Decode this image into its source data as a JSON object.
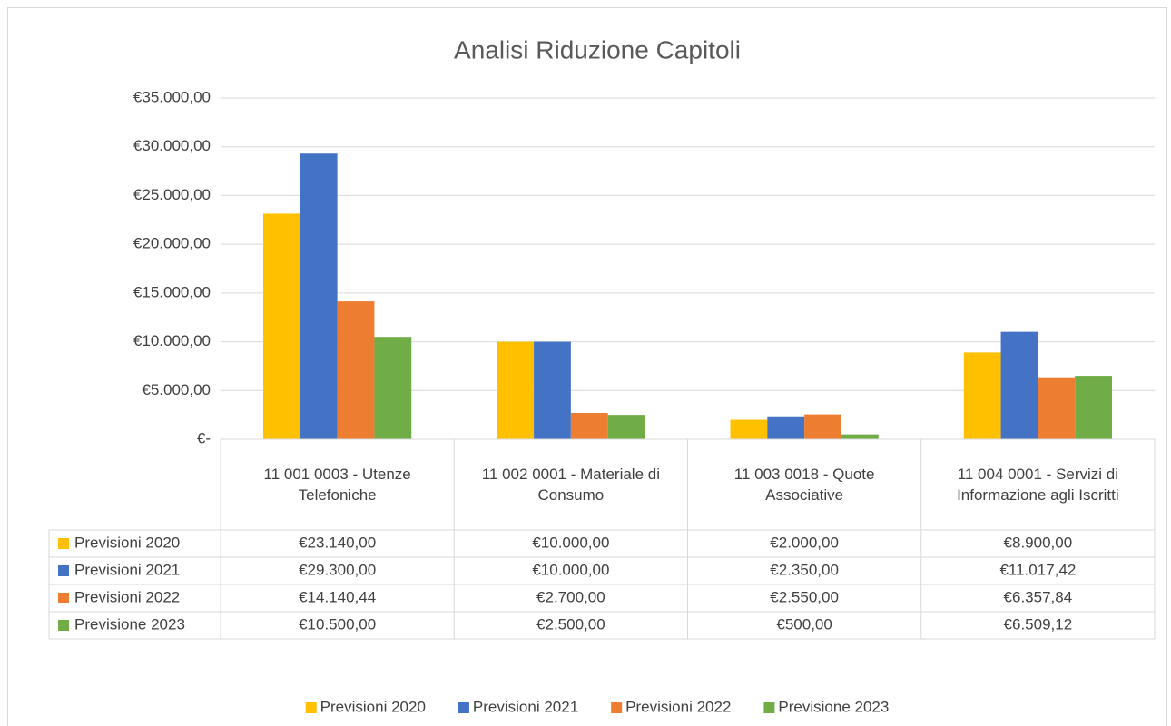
{
  "chart_data": {
    "type": "bar",
    "title": "Analisi Riduzione Capitoli",
    "categories": [
      "11 001 0003 - Utenze Telefoniche",
      "11 002 0001 - Materiale di Consumo",
      "11 003 0018 - Quote Associative",
      "11 004 0001 - Servizi di Informazione agli Iscritti"
    ],
    "series": [
      {
        "name": "Previsioni 2020",
        "color": "#ffc000",
        "values": [
          23140,
          10000,
          2000,
          8900
        ],
        "value_labels": [
          "€23.140,00",
          "€10.000,00",
          "€2.000,00",
          "€8.900,00"
        ]
      },
      {
        "name": "Previsioni 2021",
        "color": "#4472c4",
        "values": [
          29300,
          10000,
          2350,
          11017.42
        ],
        "value_labels": [
          "€29.300,00",
          "€10.000,00",
          "€2.350,00",
          "€11.017,42"
        ]
      },
      {
        "name": "Previsioni 2022",
        "color": "#ed7d31",
        "values": [
          14140.44,
          2700,
          2550,
          6357.84
        ],
        "value_labels": [
          "€14.140,44",
          "€2.700,00",
          "€2.550,00",
          "€6.357,84"
        ]
      },
      {
        "name": "Previsione 2023",
        "color": "#70ad47",
        "values": [
          10500,
          2500,
          500,
          6509.12
        ],
        "value_labels": [
          "€10.500,00",
          "€2.500,00",
          "€500,00",
          "€6.509,12"
        ]
      }
    ],
    "ylim": [
      0,
      35000
    ],
    "yticks": [
      {
        "value": 0,
        "label": "€-"
      },
      {
        "value": 5000,
        "label": "€5.000,00"
      },
      {
        "value": 10000,
        "label": "€10.000,00"
      },
      {
        "value": 15000,
        "label": "€15.000,00"
      },
      {
        "value": 20000,
        "label": "€20.000,00"
      },
      {
        "value": 25000,
        "label": "€25.000,00"
      },
      {
        "value": 30000,
        "label": "€30.000,00"
      },
      {
        "value": 35000,
        "label": "€35.000,00"
      }
    ],
    "grid": true,
    "legend": "bottom"
  }
}
